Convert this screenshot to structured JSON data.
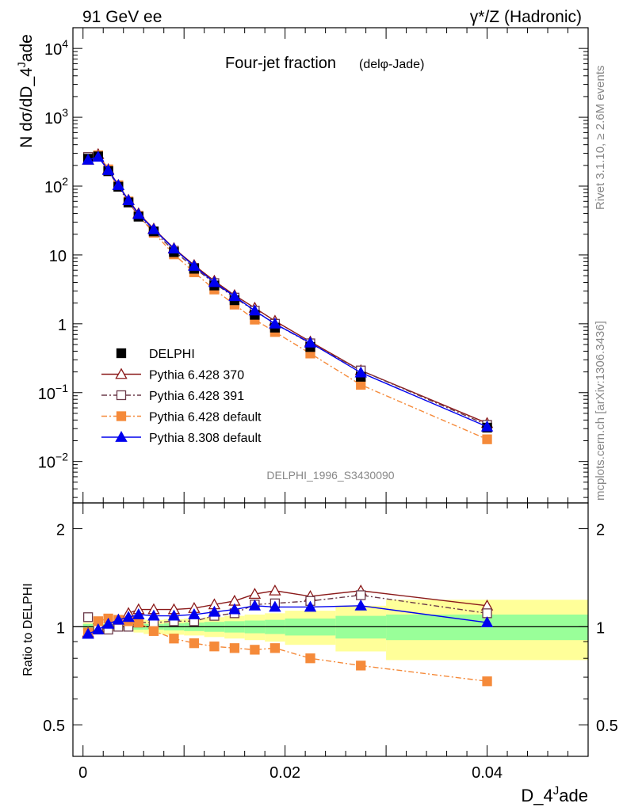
{
  "header": {
    "left": "91 GeV ee",
    "right": "γ*/Z (Hadronic)"
  },
  "side_text": {
    "rivet": "Rivet 3.1.10, ≥ 2.6M events",
    "mcplots": "mcplots.cern.ch [arXiv:1306.3436]"
  },
  "chart_data": [
    {
      "type": "line",
      "panel": "main",
      "title": "Four-jet fraction",
      "title_sub": "(delφ-Jade)",
      "ylabel": "N dσ/dD_4^Jade",
      "xlabel": "",
      "yscale": "log",
      "xlim": [
        -0.001,
        0.05
      ],
      "ylim": [
        0.0025,
        20000
      ],
      "y_ticks": [
        {
          "value": 0.01,
          "label": "10",
          "exp": "−2"
        },
        {
          "value": 0.1,
          "label": "10",
          "exp": "−1"
        },
        {
          "value": 1,
          "label": "1",
          "exp": ""
        },
        {
          "value": 10,
          "label": "10",
          "exp": ""
        },
        {
          "value": 100,
          "label": "10",
          "exp": "2"
        },
        {
          "value": 1000,
          "label": "10",
          "exp": "3"
        },
        {
          "value": 10000,
          "label": "10",
          "exp": "4"
        }
      ],
      "watermark": "DELPHI_1996_S3430090",
      "legend_position": "lower-left",
      "x": [
        0.0005,
        0.0015,
        0.0025,
        0.0035,
        0.0045,
        0.0055,
        0.007,
        0.009,
        0.011,
        0.013,
        0.015,
        0.017,
        0.019,
        0.0225,
        0.0275,
        0.04
      ],
      "series": [
        {
          "name": "DELPHI",
          "color": "#000000",
          "marker": "square",
          "line": "none",
          "values": [
            250,
            270,
            165,
            98,
            58,
            36,
            22,
            11,
            6.3,
            3.6,
            2.2,
            1.35,
            0.88,
            0.46,
            0.17,
            0.031
          ]
        },
        {
          "name": "Pythia 6.428 370",
          "color": "#8b1a1a",
          "marker": "open-triangle",
          "line": "solid",
          "values": [
            240,
            290,
            175,
            103,
            63,
            40,
            24,
            12.5,
            7.1,
            4.2,
            2.6,
            1.7,
            1.1,
            0.55,
            0.21,
            0.036
          ]
        },
        {
          "name": "Pythia 6.428 391",
          "color": "#6b3a4a",
          "marker": "open-square",
          "line": "dashdot",
          "values": [
            265,
            275,
            165,
            99,
            58,
            37,
            22,
            11.5,
            6.5,
            3.9,
            2.4,
            1.55,
            1.0,
            0.52,
            0.21,
            0.034
          ]
        },
        {
          "name": "Pythia 6.428 default",
          "color": "#f58a3a",
          "marker": "square",
          "line": "dashdot",
          "values": [
            240,
            280,
            175,
            103,
            60,
            37,
            21,
            10.2,
            5.6,
            3.15,
            1.9,
            1.15,
            0.76,
            0.37,
            0.13,
            0.021
          ]
        },
        {
          "name": "Pythia 8.308 default",
          "color": "#0000ee",
          "marker": "triangle",
          "line": "solid",
          "values": [
            240,
            265,
            170,
            103,
            62,
            39,
            23.5,
            12.3,
            6.9,
            4.0,
            2.5,
            1.55,
            1.0,
            0.53,
            0.195,
            0.032
          ]
        }
      ]
    },
    {
      "type": "line",
      "panel": "ratio",
      "ylabel": "Ratio to DELPHI",
      "xlabel": "D_4^Jade",
      "yscale": "log",
      "xlim": [
        -0.001,
        0.05
      ],
      "ylim": [
        0.4,
        2.4
      ],
      "x_ticks": [
        {
          "value": 0,
          "label": "0"
        },
        {
          "value": 0.02,
          "label": "0.02"
        },
        {
          "value": 0.04,
          "label": "0.04"
        }
      ],
      "y_ticks": [
        {
          "value": 0.5,
          "label": "0.5"
        },
        {
          "value": 1,
          "label": "1"
        },
        {
          "value": 2,
          "label": "2"
        }
      ],
      "bands": {
        "edges": [
          0.0,
          0.001,
          0.002,
          0.003,
          0.004,
          0.005,
          0.006,
          0.008,
          0.01,
          0.012,
          0.014,
          0.016,
          0.018,
          0.02,
          0.025,
          0.03,
          0.05
        ],
        "inner": [
          0.02,
          0.02,
          0.02,
          0.02,
          0.02,
          0.02,
          0.02,
          0.025,
          0.03,
          0.035,
          0.04,
          0.045,
          0.05,
          0.06,
          0.08,
          0.09
        ],
        "outer": [
          0.03,
          0.03,
          0.03,
          0.03,
          0.03,
          0.04,
          0.05,
          0.055,
          0.06,
          0.07,
          0.08,
          0.09,
          0.1,
          0.12,
          0.16,
          0.21
        ]
      },
      "x": [
        0.0005,
        0.0015,
        0.0025,
        0.0035,
        0.0045,
        0.0055,
        0.007,
        0.009,
        0.011,
        0.013,
        0.015,
        0.017,
        0.019,
        0.0225,
        0.0275,
        0.04
      ],
      "series": [
        {
          "name": "Pythia 6.428 370",
          "color": "#8b1a1a",
          "marker": "open-triangle",
          "line": "solid",
          "values": [
            0.96,
            0.99,
            1.02,
            1.05,
            1.1,
            1.13,
            1.13,
            1.13,
            1.14,
            1.17,
            1.2,
            1.26,
            1.29,
            1.24,
            1.29,
            1.16
          ]
        },
        {
          "name": "Pythia 6.428 391",
          "color": "#6b3a4a",
          "marker": "open-square",
          "line": "dashdot",
          "values": [
            1.07,
            0.98,
            0.98,
            1.0,
            1.0,
            1.03,
            1.03,
            1.04,
            1.04,
            1.08,
            1.1,
            1.17,
            1.18,
            1.2,
            1.25,
            1.1
          ]
        },
        {
          "name": "Pythia 6.428 default",
          "color": "#f58a3a",
          "marker": "square",
          "line": "dashdot",
          "values": [
            0.96,
            1.04,
            1.06,
            1.05,
            1.04,
            1.03,
            0.97,
            0.92,
            0.89,
            0.87,
            0.86,
            0.85,
            0.86,
            0.8,
            0.76,
            0.68
          ]
        },
        {
          "name": "Pythia 8.308 default",
          "color": "#0000ee",
          "marker": "triangle",
          "line": "solid",
          "values": [
            0.95,
            0.98,
            1.02,
            1.05,
            1.07,
            1.09,
            1.08,
            1.08,
            1.09,
            1.11,
            1.13,
            1.16,
            1.15,
            1.15,
            1.16,
            1.03
          ]
        }
      ]
    }
  ]
}
